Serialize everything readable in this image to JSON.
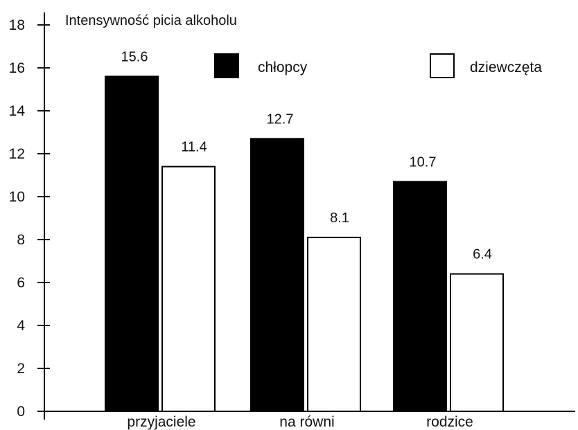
{
  "chart_data": {
    "type": "bar",
    "title": "",
    "ylabel": "Intensywność picia alkoholu",
    "xlabel": "",
    "categories": [
      "przyjaciele",
      "na równi",
      "rodzice"
    ],
    "series": [
      {
        "name": "chłopcy",
        "values": [
          15.6,
          12.7,
          10.7
        ],
        "color": "#000000",
        "fill": "#000000"
      },
      {
        "name": "dziewczęta",
        "values": [
          11.4,
          8.1,
          6.4
        ],
        "color": "#000000",
        "fill": "#ffffff"
      }
    ],
    "data_labels": [
      [
        "15.6",
        "12.7",
        "10.7"
      ],
      [
        "11.4",
        "8.1",
        "6.4"
      ]
    ],
    "ylim": [
      0,
      18
    ],
    "yticks": [
      0,
      2,
      4,
      6,
      8,
      10,
      12,
      14,
      16,
      18
    ],
    "grid": false,
    "legend_position": "top"
  }
}
